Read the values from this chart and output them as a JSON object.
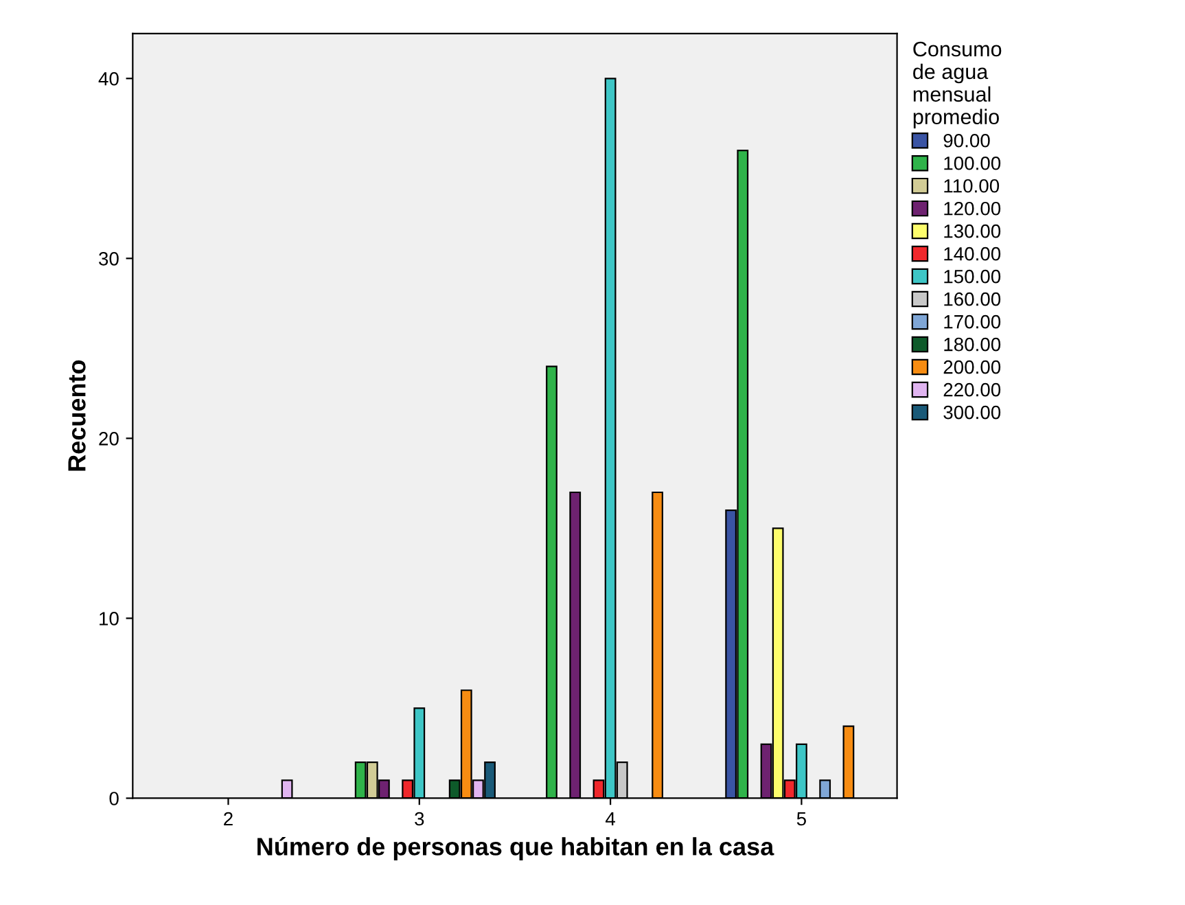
{
  "chart_data": {
    "type": "bar",
    "xlabel": "Número de personas que habitan en la casa",
    "ylabel": "Recuento",
    "legend_title": "Consumo\nde agua\nmensual\npromedio",
    "legend": "top right",
    "grid": false,
    "categories": [
      "2",
      "3",
      "4",
      "5"
    ],
    "ylim": [
      0,
      42.5
    ],
    "yticks": [
      0,
      10,
      20,
      30,
      40
    ],
    "series": [
      {
        "name": "90.00",
        "color": "#3a54a4",
        "values": [
          null,
          null,
          null,
          16
        ]
      },
      {
        "name": "100.00",
        "color": "#2fb34a",
        "values": [
          null,
          2,
          24,
          36
        ]
      },
      {
        "name": "110.00",
        "color": "#d2cc96",
        "values": [
          null,
          2,
          null,
          null
        ]
      },
      {
        "name": "120.00",
        "color": "#6e2270",
        "values": [
          null,
          1,
          17,
          3
        ]
      },
      {
        "name": "130.00",
        "color": "#fdfd6c",
        "values": [
          null,
          null,
          null,
          15
        ]
      },
      {
        "name": "140.00",
        "color": "#f0282c",
        "values": [
          null,
          1,
          1,
          1
        ]
      },
      {
        "name": "150.00",
        "color": "#3ec6c6",
        "values": [
          null,
          5,
          40,
          3
        ]
      },
      {
        "name": "160.00",
        "color": "#c8c8c8",
        "values": [
          null,
          null,
          2,
          null
        ]
      },
      {
        "name": "170.00",
        "color": "#7fa6d6",
        "values": [
          null,
          null,
          null,
          1
        ]
      },
      {
        "name": "180.00",
        "color": "#0e5a2a",
        "values": [
          null,
          1,
          null,
          null
        ]
      },
      {
        "name": "200.00",
        "color": "#f78c12",
        "values": [
          null,
          6,
          17,
          4
        ]
      },
      {
        "name": "220.00",
        "color": "#e0b4f0",
        "values": [
          1,
          1,
          null,
          null
        ]
      },
      {
        "name": "300.00",
        "color": "#1a5a78",
        "values": [
          null,
          2,
          null,
          null
        ]
      }
    ]
  }
}
